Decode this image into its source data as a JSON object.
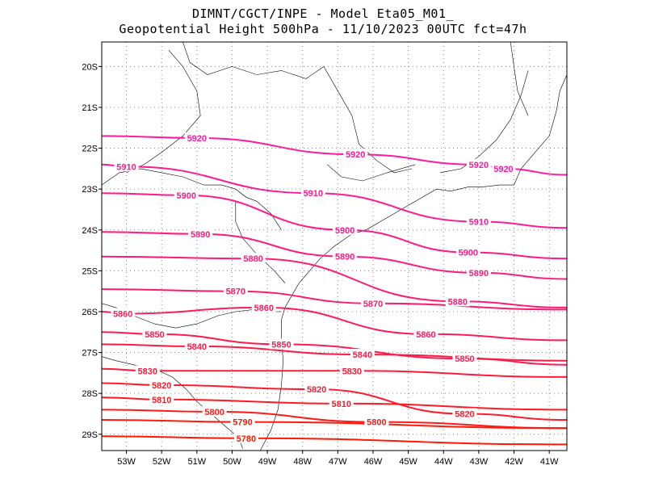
{
  "header": {
    "line1": "DIMNT/CGCT/INPE  -  Model Eta05_M01_",
    "line2": "Geopotential Height 500hPa  -  11/10/2023 00UTC fct=47h"
  },
  "map": {
    "lon_range": [
      -53.7,
      -40.5
    ],
    "lat_range": [
      -29.4,
      -19.4
    ],
    "grid": "dotted",
    "x_ticks": [
      "53W",
      "52W",
      "51W",
      "50W",
      "49W",
      "48W",
      "47W",
      "46W",
      "45W",
      "44W",
      "43W",
      "42W",
      "41W"
    ],
    "y_ticks": [
      "20S",
      "21S",
      "22S",
      "23S",
      "24S",
      "25S",
      "26S",
      "27S",
      "28S",
      "29S"
    ],
    "coastline_color": "#000000",
    "low_color": "#ff1a00",
    "high_color": "#ff1aa0"
  },
  "contours": [
    {
      "value": "5920",
      "labels": [
        {
          "text": "5920",
          "lon": -51.0,
          "lat": -21.75
        },
        {
          "text": "5920",
          "lon": -46.5,
          "lat": -22.15
        },
        {
          "text": "5920",
          "lon": -43.0,
          "lat": -22.4
        },
        {
          "text": "5920",
          "lon": -42.3,
          "lat": -22.5
        }
      ]
    },
    {
      "value": "5910",
      "labels": [
        {
          "text": "5910",
          "lon": -53.0,
          "lat": -22.45
        },
        {
          "text": "5910",
          "lon": -47.7,
          "lat": -23.1
        },
        {
          "text": "5910",
          "lon": -43.0,
          "lat": -23.8
        }
      ]
    },
    {
      "value": "5900",
      "labels": [
        {
          "text": "5900",
          "lon": -51.3,
          "lat": -23.15
        },
        {
          "text": "5900",
          "lon": -46.8,
          "lat": -24.0
        },
        {
          "text": "5900",
          "lon": -43.3,
          "lat": -24.55
        }
      ]
    },
    {
      "value": "5890",
      "labels": [
        {
          "text": "5890",
          "lon": -50.9,
          "lat": -24.1
        },
        {
          "text": "5890",
          "lon": -46.8,
          "lat": -24.65
        },
        {
          "text": "5890",
          "lon": -43.0,
          "lat": -25.05
        }
      ]
    },
    {
      "value": "5880",
      "labels": [
        {
          "text": "5880",
          "lon": -49.4,
          "lat": -24.7
        },
        {
          "text": "5880",
          "lon": -43.6,
          "lat": -25.75
        }
      ]
    },
    {
      "value": "5870",
      "labels": [
        {
          "text": "5870",
          "lon": -49.9,
          "lat": -25.5
        },
        {
          "text": "5870",
          "lon": -46.0,
          "lat": -25.8
        }
      ]
    },
    {
      "value": "5860",
      "labels": [
        {
          "text": "5860",
          "lon": -53.1,
          "lat": -26.05
        },
        {
          "text": "5860",
          "lon": -49.1,
          "lat": -25.9
        },
        {
          "text": "5860",
          "lon": -44.5,
          "lat": -26.55
        }
      ]
    },
    {
      "value": "5850",
      "labels": [
        {
          "text": "5850",
          "lon": -52.2,
          "lat": -26.55
        },
        {
          "text": "5850",
          "lon": -48.6,
          "lat": -26.8
        },
        {
          "text": "5850",
          "lon": -43.4,
          "lat": -27.15
        }
      ]
    },
    {
      "value": "5840",
      "labels": [
        {
          "text": "5840",
          "lon": -51.0,
          "lat": -26.85
        },
        {
          "text": "5840",
          "lon": -46.3,
          "lat": -27.05
        }
      ]
    },
    {
      "value": "5830",
      "labels": [
        {
          "text": "5830",
          "lon": -52.4,
          "lat": -27.45
        },
        {
          "text": "5830",
          "lon": -46.6,
          "lat": -27.45
        }
      ]
    },
    {
      "value": "5820",
      "labels": [
        {
          "text": "5820",
          "lon": -52.0,
          "lat": -27.8
        },
        {
          "text": "5820",
          "lon": -47.6,
          "lat": -27.9
        },
        {
          "text": "5820",
          "lon": -43.4,
          "lat": -28.5
        }
      ]
    },
    {
      "value": "5810",
      "labels": [
        {
          "text": "5810",
          "lon": -52.0,
          "lat": -28.15
        },
        {
          "text": "5810",
          "lon": -46.9,
          "lat": -28.25
        }
      ]
    },
    {
      "value": "5800",
      "labels": [
        {
          "text": "5800",
          "lon": -50.5,
          "lat": -28.45
        },
        {
          "text": "5800",
          "lon": -45.9,
          "lat": -28.7
        }
      ]
    },
    {
      "value": "5790",
      "labels": [
        {
          "text": "5790",
          "lon": -49.7,
          "lat": -28.7
        }
      ]
    },
    {
      "value": "5780",
      "labels": [
        {
          "text": "5780",
          "lon": -49.6,
          "lat": -29.1
        }
      ]
    }
  ]
}
